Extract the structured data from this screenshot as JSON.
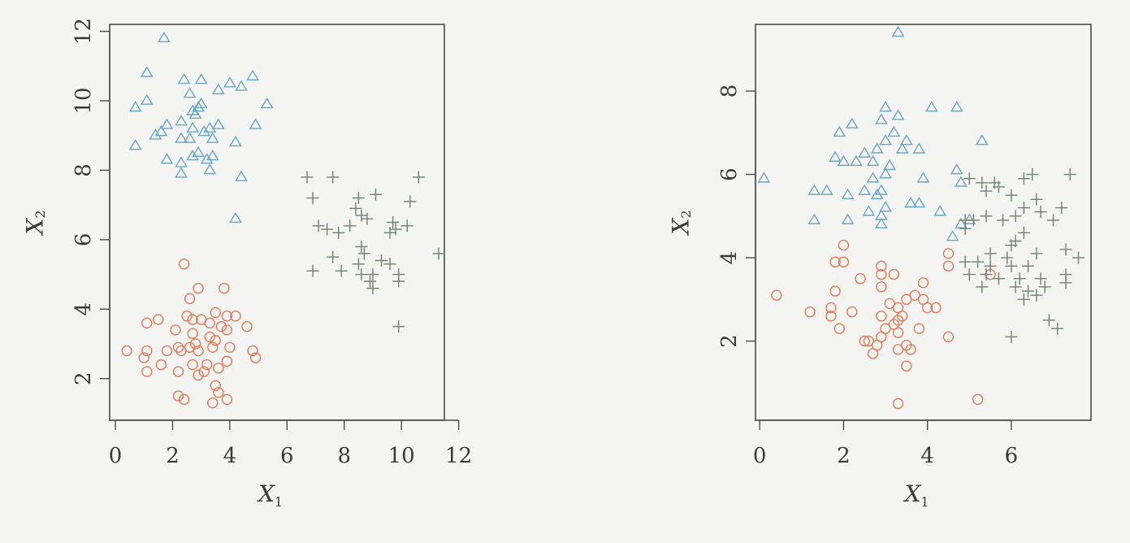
{
  "colors": {
    "triangle": "#6aa7c0",
    "circle": "#e07b57",
    "plus": "#6f7f70",
    "axis": "#4a4a4a"
  },
  "chart_data": [
    {
      "type": "scatter",
      "title": "",
      "xlabel": "X",
      "xlabel_sub": "1",
      "ylabel": "X",
      "ylabel_sub": "2",
      "xlim": [
        -0.2,
        11.5
      ],
      "ylim": [
        0.8,
        12.2
      ],
      "xticks": [
        0,
        2,
        4,
        6,
        8,
        10,
        12
      ],
      "yticks": [
        2,
        4,
        6,
        8,
        10,
        12
      ],
      "grid": false,
      "series": [
        {
          "marker": "triangle",
          "points": [
            [
              1.7,
              11.8
            ],
            [
              1.1,
              10.8
            ],
            [
              2.4,
              10.6
            ],
            [
              3.0,
              10.6
            ],
            [
              4.0,
              10.5
            ],
            [
              4.4,
              10.4
            ],
            [
              4.8,
              10.7
            ],
            [
              0.7,
              9.8
            ],
            [
              1.1,
              10.0
            ],
            [
              2.6,
              10.2
            ],
            [
              3.0,
              9.9
            ],
            [
              2.7,
              9.7
            ],
            [
              2.8,
              9.6
            ],
            [
              5.3,
              9.9
            ],
            [
              2.3,
              9.4
            ],
            [
              2.9,
              9.8
            ],
            [
              3.6,
              10.3
            ],
            [
              1.8,
              9.3
            ],
            [
              2.7,
              9.2
            ],
            [
              3.3,
              9.2
            ],
            [
              3.6,
              9.3
            ],
            [
              3.1,
              9.1
            ],
            [
              4.9,
              9.3
            ],
            [
              1.4,
              9.0
            ],
            [
              1.6,
              9.1
            ],
            [
              2.3,
              8.9
            ],
            [
              2.6,
              8.9
            ],
            [
              3.4,
              8.9
            ],
            [
              4.2,
              8.8
            ],
            [
              0.7,
              8.7
            ],
            [
              2.7,
              8.4
            ],
            [
              2.9,
              8.5
            ],
            [
              3.4,
              8.4
            ],
            [
              1.8,
              8.3
            ],
            [
              2.3,
              8.2
            ],
            [
              3.2,
              8.3
            ],
            [
              3.3,
              8.0
            ],
            [
              2.3,
              7.9
            ],
            [
              4.4,
              7.8
            ],
            [
              4.2,
              6.6
            ]
          ]
        },
        {
          "marker": "circle",
          "points": [
            [
              2.4,
              5.3
            ],
            [
              2.9,
              4.6
            ],
            [
              3.8,
              4.6
            ],
            [
              2.6,
              4.3
            ],
            [
              2.5,
              3.8
            ],
            [
              3.5,
              3.9
            ],
            [
              1.5,
              3.7
            ],
            [
              2.7,
              3.7
            ],
            [
              3.0,
              3.7
            ],
            [
              3.3,
              3.6
            ],
            [
              3.9,
              3.8
            ],
            [
              4.2,
              3.8
            ],
            [
              1.1,
              3.6
            ],
            [
              3.7,
              3.5
            ],
            [
              4.6,
              3.5
            ],
            [
              2.1,
              3.4
            ],
            [
              3.9,
              3.4
            ],
            [
              2.7,
              3.3
            ],
            [
              3.3,
              3.2
            ],
            [
              2.8,
              3.0
            ],
            [
              3.5,
              3.1
            ],
            [
              2.2,
              2.9
            ],
            [
              2.6,
              2.9
            ],
            [
              4.0,
              2.9
            ],
            [
              1.1,
              2.8
            ],
            [
              1.8,
              2.8
            ],
            [
              2.3,
              2.8
            ],
            [
              2.9,
              2.8
            ],
            [
              3.4,
              2.9
            ],
            [
              4.8,
              2.8
            ],
            [
              0.4,
              2.8
            ],
            [
              1.0,
              2.6
            ],
            [
              1.6,
              2.4
            ],
            [
              2.7,
              2.4
            ],
            [
              3.2,
              2.4
            ],
            [
              3.6,
              2.3
            ],
            [
              4.9,
              2.6
            ],
            [
              1.1,
              2.2
            ],
            [
              2.2,
              2.2
            ],
            [
              3.1,
              2.2
            ],
            [
              3.5,
              1.8
            ],
            [
              3.6,
              1.6
            ],
            [
              2.2,
              1.5
            ],
            [
              2.4,
              1.4
            ],
            [
              3.4,
              1.3
            ],
            [
              3.9,
              1.4
            ],
            [
              3.9,
              2.5
            ],
            [
              2.9,
              2.1
            ]
          ]
        },
        {
          "marker": "plus",
          "points": [
            [
              6.7,
              7.8
            ],
            [
              7.6,
              7.8
            ],
            [
              10.6,
              7.8
            ],
            [
              8.5,
              7.2
            ],
            [
              9.1,
              7.3
            ],
            [
              10.3,
              7.1
            ],
            [
              6.9,
              7.2
            ],
            [
              8.4,
              6.9
            ],
            [
              8.6,
              6.7
            ],
            [
              8.8,
              6.6
            ],
            [
              9.7,
              6.5
            ],
            [
              9.8,
              6.3
            ],
            [
              10.2,
              6.4
            ],
            [
              7.1,
              6.4
            ],
            [
              7.4,
              6.3
            ],
            [
              7.8,
              6.2
            ],
            [
              8.2,
              6.4
            ],
            [
              9.6,
              6.2
            ],
            [
              8.6,
              5.8
            ],
            [
              8.7,
              5.6
            ],
            [
              7.6,
              5.5
            ],
            [
              9.3,
              5.4
            ],
            [
              11.3,
              5.6
            ],
            [
              8.5,
              5.3
            ],
            [
              9.6,
              5.3
            ],
            [
              6.9,
              5.1
            ],
            [
              7.9,
              5.1
            ],
            [
              9.0,
              5.0
            ],
            [
              8.6,
              5.0
            ],
            [
              9.9,
              5.0
            ],
            [
              8.9,
              4.8
            ],
            [
              9.0,
              4.6
            ],
            [
              9.9,
              4.8
            ],
            [
              9.9,
              3.5
            ]
          ]
        }
      ]
    },
    {
      "type": "scatter",
      "title": "",
      "xlabel": "X",
      "xlabel_sub": "1",
      "ylabel": "X",
      "ylabel_sub": "2",
      "xlim": [
        -0.1,
        7.9
      ],
      "ylim": [
        0.1,
        9.6
      ],
      "xticks": [
        0,
        2,
        4,
        6
      ],
      "yticks": [
        2,
        4,
        6,
        8
      ],
      "grid": false,
      "series": [
        {
          "marker": "triangle",
          "points": [
            [
              3.3,
              9.4
            ],
            [
              3.0,
              7.6
            ],
            [
              4.1,
              7.6
            ],
            [
              4.7,
              7.6
            ],
            [
              3.3,
              7.4
            ],
            [
              2.2,
              7.2
            ],
            [
              2.9,
              7.3
            ],
            [
              3.2,
              7.0
            ],
            [
              1.9,
              7.0
            ],
            [
              5.3,
              6.8
            ],
            [
              3.0,
              6.8
            ],
            [
              3.4,
              6.6
            ],
            [
              3.5,
              6.8
            ],
            [
              2.8,
              6.6
            ],
            [
              2.5,
              6.5
            ],
            [
              3.8,
              6.6
            ],
            [
              1.8,
              6.4
            ],
            [
              2.0,
              6.3
            ],
            [
              2.3,
              6.3
            ],
            [
              2.7,
              6.3
            ],
            [
              3.1,
              6.2
            ],
            [
              3.0,
              6.0
            ],
            [
              0.1,
              5.9
            ],
            [
              2.1,
              5.5
            ],
            [
              2.5,
              5.6
            ],
            [
              2.9,
              5.6
            ],
            [
              3.9,
              5.9
            ],
            [
              4.7,
              6.1
            ],
            [
              1.3,
              5.6
            ],
            [
              1.6,
              5.6
            ],
            [
              2.8,
              5.5
            ],
            [
              3.6,
              5.3
            ],
            [
              3.8,
              5.3
            ],
            [
              4.3,
              5.1
            ],
            [
              2.6,
              5.1
            ],
            [
              2.9,
              5.0
            ],
            [
              1.3,
              4.9
            ],
            [
              2.1,
              4.9
            ],
            [
              2.9,
              4.8
            ],
            [
              4.8,
              4.8
            ],
            [
              5.0,
              4.9
            ],
            [
              4.6,
              4.5
            ],
            [
              3.0,
              5.2
            ],
            [
              2.7,
              5.9
            ],
            [
              4.8,
              5.8
            ]
          ]
        },
        {
          "marker": "circle",
          "points": [
            [
              2.0,
              4.3
            ],
            [
              1.8,
              3.9
            ],
            [
              2.0,
              3.9
            ],
            [
              4.5,
              4.1
            ],
            [
              4.5,
              3.8
            ],
            [
              2.4,
              3.5
            ],
            [
              2.9,
              3.8
            ],
            [
              2.9,
              3.6
            ],
            [
              3.2,
              3.6
            ],
            [
              3.9,
              3.4
            ],
            [
              5.5,
              3.6
            ],
            [
              0.4,
              3.1
            ],
            [
              1.8,
              3.2
            ],
            [
              2.9,
              3.3
            ],
            [
              3.5,
              3.0
            ],
            [
              3.7,
              3.1
            ],
            [
              3.9,
              3.0
            ],
            [
              4.2,
              2.8
            ],
            [
              1.7,
              2.8
            ],
            [
              2.2,
              2.7
            ],
            [
              3.1,
              2.9
            ],
            [
              3.3,
              2.8
            ],
            [
              4.0,
              2.8
            ],
            [
              1.2,
              2.7
            ],
            [
              2.9,
              2.6
            ],
            [
              3.2,
              2.4
            ],
            [
              3.3,
              2.5
            ],
            [
              1.7,
              2.6
            ],
            [
              3.0,
              2.3
            ],
            [
              3.4,
              2.6
            ],
            [
              1.9,
              2.3
            ],
            [
              2.9,
              2.1
            ],
            [
              3.3,
              2.2
            ],
            [
              3.8,
              2.3
            ],
            [
              4.5,
              2.1
            ],
            [
              2.5,
              2.0
            ],
            [
              2.6,
              2.0
            ],
            [
              2.8,
              1.9
            ],
            [
              3.5,
              1.9
            ],
            [
              3.3,
              1.8
            ],
            [
              3.6,
              1.8
            ],
            [
              2.7,
              1.7
            ],
            [
              3.5,
              1.4
            ],
            [
              3.3,
              0.5
            ],
            [
              5.2,
              0.6
            ]
          ]
        },
        {
          "marker": "plus",
          "points": [
            [
              5.0,
              5.9
            ],
            [
              5.3,
              5.8
            ],
            [
              5.6,
              5.8
            ],
            [
              6.3,
              5.9
            ],
            [
              6.5,
              6.0
            ],
            [
              7.4,
              6.0
            ],
            [
              5.4,
              5.6
            ],
            [
              5.7,
              5.7
            ],
            [
              6.0,
              5.5
            ],
            [
              6.6,
              5.4
            ],
            [
              7.2,
              5.2
            ],
            [
              6.3,
              5.2
            ],
            [
              6.7,
              5.1
            ],
            [
              5.4,
              5.0
            ],
            [
              5.8,
              4.9
            ],
            [
              6.1,
              5.0
            ],
            [
              4.9,
              4.9
            ],
            [
              5.1,
              4.9
            ],
            [
              7.0,
              4.9
            ],
            [
              4.9,
              4.7
            ],
            [
              6.3,
              4.6
            ],
            [
              6.1,
              4.4
            ],
            [
              6.0,
              4.3
            ],
            [
              5.5,
              4.1
            ],
            [
              5.9,
              4.0
            ],
            [
              6.6,
              4.1
            ],
            [
              7.3,
              4.2
            ],
            [
              7.6,
              4.0
            ],
            [
              4.9,
              3.9
            ],
            [
              5.2,
              3.9
            ],
            [
              5.5,
              3.8
            ],
            [
              6.0,
              3.8
            ],
            [
              6.4,
              3.8
            ],
            [
              5.0,
              3.6
            ],
            [
              5.4,
              3.6
            ],
            [
              5.7,
              3.5
            ],
            [
              6.2,
              3.5
            ],
            [
              6.7,
              3.5
            ],
            [
              7.3,
              3.6
            ],
            [
              5.3,
              3.3
            ],
            [
              6.1,
              3.3
            ],
            [
              6.4,
              3.2
            ],
            [
              6.8,
              3.3
            ],
            [
              7.3,
              3.4
            ],
            [
              6.6,
              3.1
            ],
            [
              6.3,
              3.0
            ],
            [
              6.9,
              2.5
            ],
            [
              7.1,
              2.3
            ],
            [
              6.0,
              2.1
            ]
          ]
        }
      ]
    }
  ]
}
